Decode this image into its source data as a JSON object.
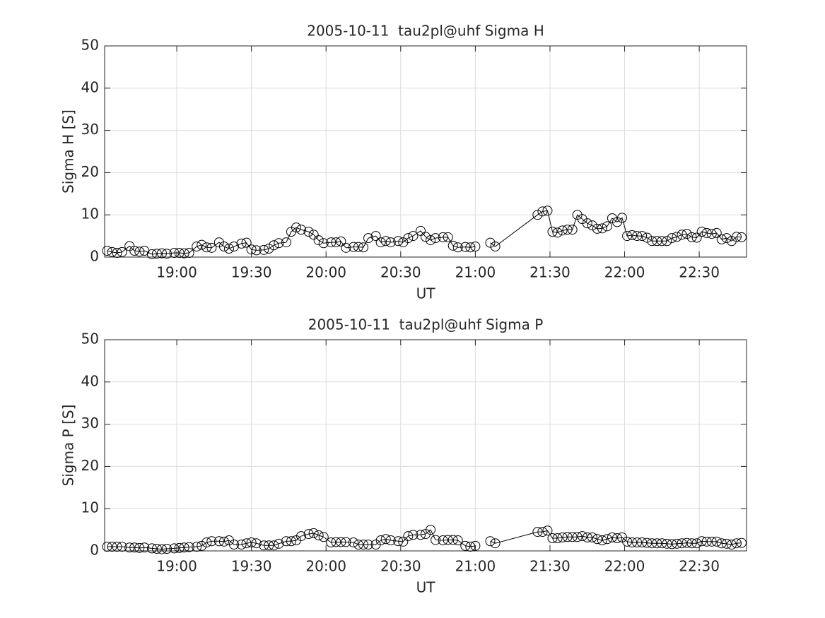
{
  "chart_data": [
    {
      "type": "line",
      "title": "2005-10-11  tau2pl@uhf Sigma H",
      "xlabel": "UT",
      "ylabel": "Sigma H [S]",
      "x": [
        "18:32",
        "18:34",
        "18:36",
        "18:38",
        "18:41",
        "18:43",
        "18:45",
        "18:47",
        "18:50",
        "18:52",
        "18:54",
        "18:56",
        "18:59",
        "19:01",
        "19:03",
        "19:05",
        "19:08",
        "19:10",
        "19:12",
        "19:14",
        "19:17",
        "19:19",
        "19:21",
        "19:23",
        "19:26",
        "19:28",
        "19:30",
        "19:32",
        "19:35",
        "19:37",
        "19:39",
        "19:41",
        "19:44",
        "19:46",
        "19:48",
        "19:50",
        "19:53",
        "19:55",
        "19:57",
        "19:59",
        "20:02",
        "20:04",
        "20:06",
        "20:08",
        "20:11",
        "20:13",
        "20:15",
        "20:17",
        "20:20",
        "20:22",
        "20:24",
        "20:26",
        "20:29",
        "20:31",
        "20:33",
        "20:35",
        "20:38",
        "20:40",
        "20:42",
        "20:44",
        "20:47",
        "20:49",
        "20:51",
        "20:53",
        "20:56",
        "20:58",
        "21:00",
        "21:03",
        "21:06",
        "21:08",
        "21:25",
        "21:27",
        "21:29",
        "21:31",
        "21:33",
        "21:35",
        "21:37",
        "21:39",
        "21:41",
        "21:43",
        "21:45",
        "21:47",
        "21:49",
        "21:51",
        "21:53",
        "21:55",
        "21:57",
        "21:59",
        "22:01",
        "22:03",
        "22:05",
        "22:07",
        "22:09",
        "22:11",
        "22:13",
        "22:15",
        "22:17",
        "22:19",
        "22:21",
        "22:23",
        "22:25",
        "22:27",
        "22:29",
        "22:31",
        "22:33",
        "22:35",
        "22:37",
        "22:39",
        "22:41",
        "22:43",
        "22:45",
        "22:47"
      ],
      "series": [
        {
          "color": "#000000",
          "values": [
            1.5,
            1.2,
            1.0,
            1.2,
            2.6,
            1.5,
            1.3,
            1.5,
            0.7,
            0.8,
            0.9,
            0.8,
            1.0,
            1.0,
            0.9,
            1.0,
            2.5,
            2.9,
            2.3,
            2.2,
            3.5,
            2.5,
            2.0,
            2.5,
            3.2,
            3.4,
            1.8,
            1.6,
            1.7,
            2.0,
            2.8,
            3.3,
            3.5,
            6.0,
            7.0,
            6.5,
            6.0,
            5.3,
            4.0,
            3.3,
            3.5,
            3.5,
            3.7,
            2.2,
            2.4,
            2.4,
            2.3,
            4.5,
            5.0,
            3.5,
            3.8,
            3.5,
            3.8,
            3.5,
            4.5,
            5.0,
            6.2,
            4.8,
            4.0,
            4.5,
            4.7,
            4.7,
            2.7,
            2.3,
            2.4,
            2.3,
            2.5,
            null,
            3.4,
            2.5,
            10.0,
            10.8,
            11.0,
            6.0,
            5.8,
            6.3,
            6.5,
            6.5,
            10.0,
            9.0,
            8.0,
            7.5,
            6.7,
            6.8,
            7.3,
            9.2,
            8.3,
            9.3,
            5.0,
            5.2,
            5.0,
            5.0,
            4.6,
            3.8,
            3.8,
            3.8,
            3.8,
            4.5,
            4.8,
            5.3,
            5.5,
            4.7,
            4.6,
            6.0,
            5.7,
            5.5,
            5.7,
            4.2,
            4.5,
            3.8,
            4.8,
            4.7
          ]
        }
      ],
      "xlim": [
        "18:31",
        "22:49"
      ],
      "xticks": [
        "19:00",
        "19:30",
        "20:00",
        "20:30",
        "21:00",
        "21:30",
        "22:00",
        "22:30"
      ],
      "ylim": [
        0,
        50
      ],
      "yticks": [
        0,
        10,
        20,
        30,
        40,
        50
      ],
      "grid": true
    },
    {
      "type": "line",
      "title": "2005-10-11  tau2pl@uhf Sigma P",
      "xlabel": "UT",
      "ylabel": "Sigma P [S]",
      "x": [
        "18:32",
        "18:34",
        "18:36",
        "18:38",
        "18:41",
        "18:43",
        "18:45",
        "18:47",
        "18:50",
        "18:52",
        "18:54",
        "18:56",
        "18:59",
        "19:01",
        "19:03",
        "19:05",
        "19:08",
        "19:10",
        "19:12",
        "19:14",
        "19:17",
        "19:19",
        "19:21",
        "19:23",
        "19:26",
        "19:28",
        "19:30",
        "19:32",
        "19:35",
        "19:37",
        "19:39",
        "19:41",
        "19:44",
        "19:46",
        "19:48",
        "19:50",
        "19:53",
        "19:55",
        "19:57",
        "19:59",
        "20:02",
        "20:04",
        "20:06",
        "20:08",
        "20:11",
        "20:13",
        "20:15",
        "20:17",
        "20:20",
        "20:22",
        "20:24",
        "20:26",
        "20:29",
        "20:31",
        "20:33",
        "20:35",
        "20:38",
        "20:40",
        "20:42",
        "20:44",
        "20:47",
        "20:49",
        "20:51",
        "20:53",
        "20:56",
        "20:58",
        "21:00",
        "21:03",
        "21:06",
        "21:08",
        "21:25",
        "21:27",
        "21:29",
        "21:31",
        "21:33",
        "21:35",
        "21:37",
        "21:39",
        "21:41",
        "21:43",
        "21:45",
        "21:47",
        "21:49",
        "21:51",
        "21:53",
        "21:55",
        "21:57",
        "21:59",
        "22:01",
        "22:03",
        "22:05",
        "22:07",
        "22:09",
        "22:11",
        "22:13",
        "22:15",
        "22:17",
        "22:19",
        "22:21",
        "22:23",
        "22:25",
        "22:27",
        "22:29",
        "22:31",
        "22:33",
        "22:35",
        "22:37",
        "22:39",
        "22:41",
        "22:43",
        "22:45",
        "22:47"
      ],
      "series": [
        {
          "color": "#000000",
          "values": [
            1.0,
            1.0,
            1.0,
            1.0,
            0.8,
            0.8,
            0.7,
            0.8,
            0.6,
            0.5,
            0.4,
            0.5,
            0.6,
            0.7,
            0.8,
            0.9,
            1.0,
            1.2,
            2.0,
            2.3,
            2.3,
            2.2,
            2.5,
            1.5,
            1.5,
            1.8,
            2.0,
            1.8,
            1.3,
            1.3,
            1.3,
            1.7,
            2.3,
            2.3,
            2.5,
            3.5,
            4.0,
            4.2,
            3.7,
            3.3,
            2.0,
            2.1,
            2.1,
            2.1,
            2.0,
            1.5,
            1.5,
            1.5,
            1.5,
            2.5,
            2.8,
            2.5,
            2.3,
            2.2,
            3.5,
            3.8,
            3.8,
            4.0,
            5.0,
            2.6,
            2.5,
            2.6,
            2.6,
            2.5,
            1.2,
            1.0,
            1.2,
            null,
            2.3,
            1.8,
            4.5,
            4.5,
            4.8,
            3.0,
            3.0,
            3.2,
            3.3,
            3.3,
            3.3,
            3.5,
            3.2,
            3.2,
            2.8,
            2.5,
            2.8,
            3.2,
            3.0,
            3.2,
            2.2,
            2.0,
            2.0,
            2.0,
            1.9,
            1.8,
            1.8,
            1.8,
            1.7,
            1.6,
            1.7,
            1.8,
            1.9,
            1.8,
            1.8,
            2.3,
            2.2,
            2.2,
            2.2,
            1.8,
            1.7,
            1.5,
            1.8,
            1.9
          ]
        }
      ],
      "xlim": [
        "18:31",
        "22:49"
      ],
      "xticks": [
        "19:00",
        "19:30",
        "20:00",
        "20:30",
        "21:00",
        "21:30",
        "22:00",
        "22:30"
      ],
      "ylim": [
        0,
        50
      ],
      "yticks": [
        0,
        10,
        20,
        30,
        40,
        50
      ],
      "grid": true
    }
  ]
}
